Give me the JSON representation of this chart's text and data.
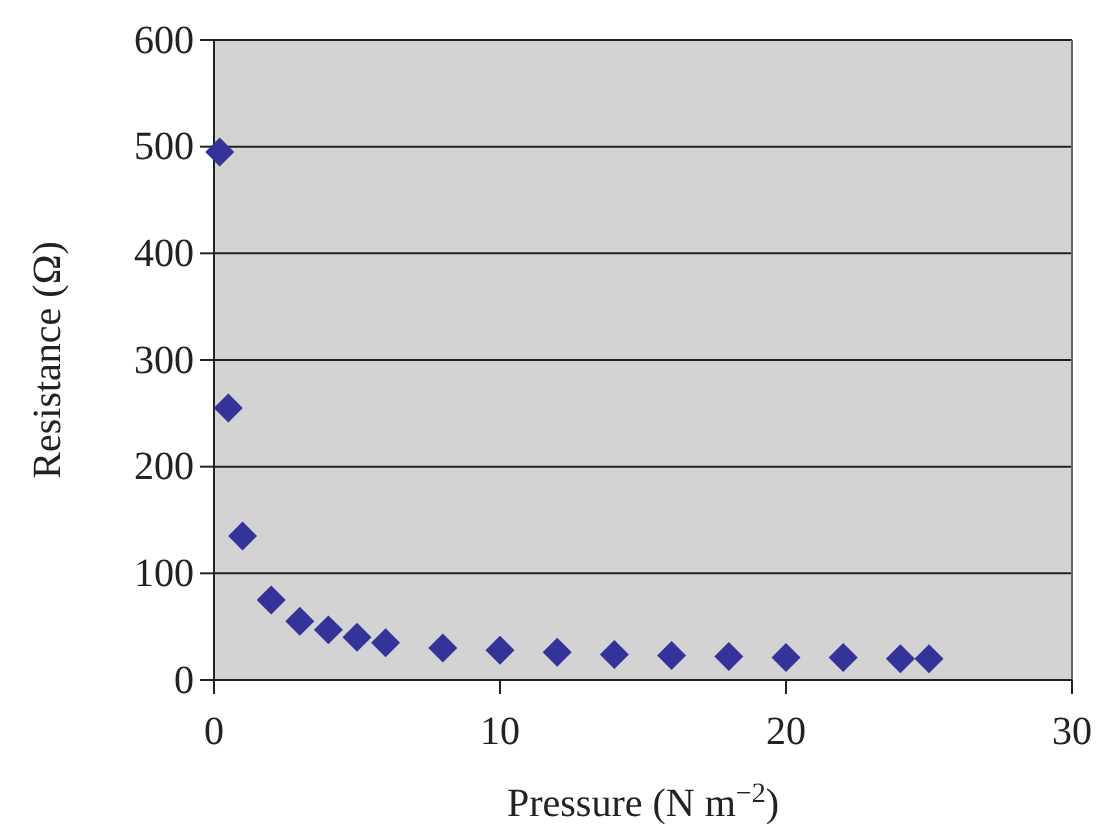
{
  "chart_data": {
    "type": "scatter",
    "xlabel": "Pressure (N m$^{−2}$)",
    "ylabel": "Resistance (Ω)",
    "x": [
      0.2,
      0.5,
      1,
      2,
      3,
      4,
      5,
      6,
      8,
      10,
      12,
      14,
      16,
      18,
      20,
      22,
      24,
      25
    ],
    "series": [
      {
        "color": "#333399",
        "values": [
          495,
          255,
          135,
          75,
          55,
          47,
          40,
          35,
          30,
          28,
          26,
          24,
          23,
          22,
          21,
          21,
          20,
          20
        ]
      }
    ],
    "xlim": [
      0,
      30
    ],
    "xticks": [
      0,
      10,
      20,
      30
    ],
    "ylim": [
      0,
      600
    ],
    "yticks": [
      0,
      100,
      200,
      300,
      400,
      500,
      600
    ],
    "grid": "y",
    "marker": "diamond"
  }
}
